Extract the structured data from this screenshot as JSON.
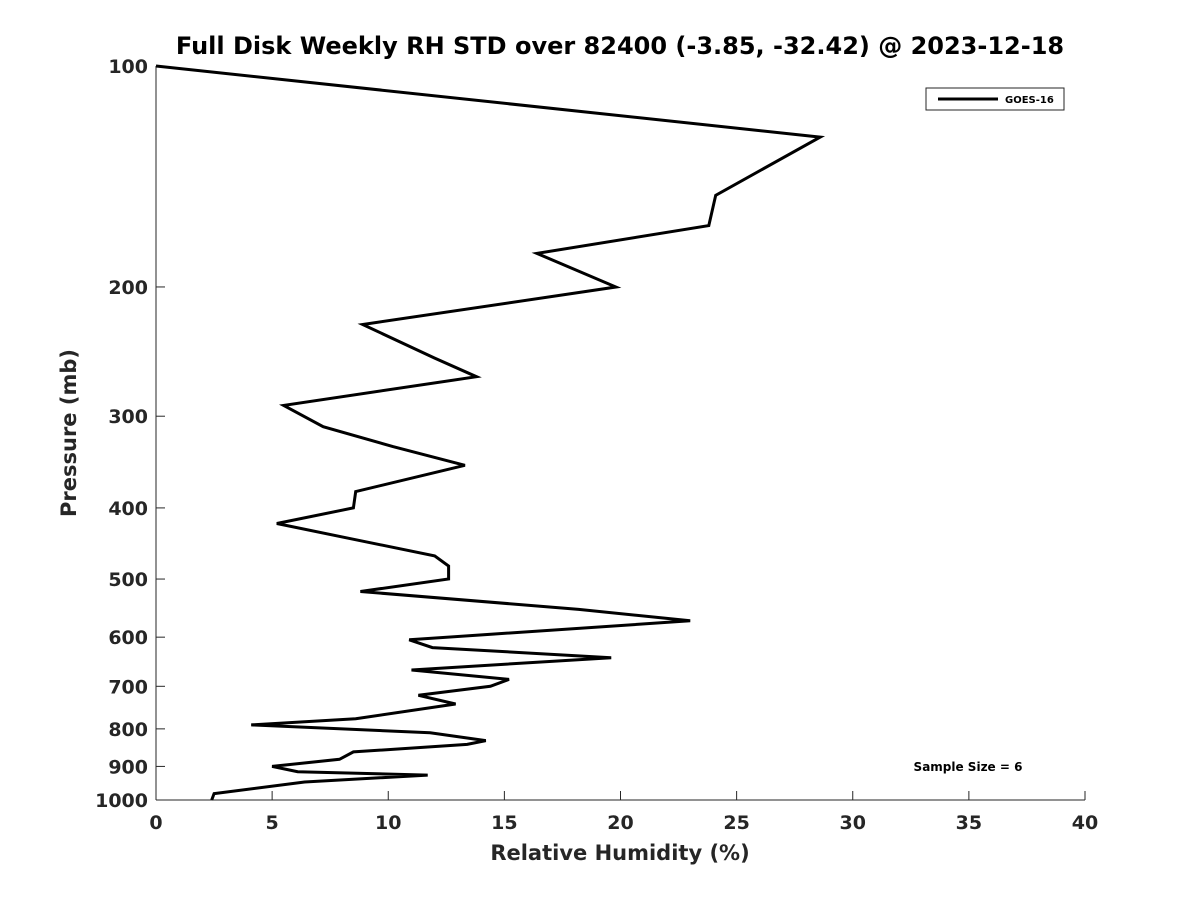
{
  "chart_data": {
    "type": "line",
    "title": "Full Disk Weekly RH STD over 82400 (-3.85, -32.42) @ 2023-12-18",
    "xlabel": "Relative Humidity (%)",
    "ylabel": "Pressure (mb)",
    "xlim": [
      0,
      40
    ],
    "ylim": [
      100,
      1000
    ],
    "y_scale": "log",
    "y_reversed": true,
    "x_ticks": [
      0,
      5,
      10,
      15,
      20,
      25,
      30,
      35,
      40
    ],
    "y_ticks": [
      100,
      200,
      300,
      400,
      500,
      600,
      700,
      800,
      900,
      1000
    ],
    "grid": false,
    "legend_position": "top-right",
    "series": [
      {
        "name": "GOES-16",
        "color": "#000000",
        "points": [
          [
            0.0,
            100
          ],
          [
            28.6,
            125
          ],
          [
            24.1,
            150
          ],
          [
            23.8,
            165
          ],
          [
            16.4,
            180
          ],
          [
            19.8,
            200
          ],
          [
            8.9,
            225
          ],
          [
            12.0,
            250
          ],
          [
            13.8,
            265
          ],
          [
            5.5,
            290
          ],
          [
            7.2,
            310
          ],
          [
            10.2,
            330
          ],
          [
            13.3,
            350
          ],
          [
            8.6,
            380
          ],
          [
            8.5,
            400
          ],
          [
            5.2,
            420
          ],
          [
            8.3,
            440
          ],
          [
            12.0,
            465
          ],
          [
            12.6,
            480
          ],
          [
            12.6,
            500
          ],
          [
            8.8,
            520
          ],
          [
            18.2,
            550
          ],
          [
            23.0,
            570
          ],
          [
            10.9,
            605
          ],
          [
            11.9,
            620
          ],
          [
            19.6,
            640
          ],
          [
            11.0,
            665
          ],
          [
            15.2,
            685
          ],
          [
            14.4,
            700
          ],
          [
            11.3,
            720
          ],
          [
            12.9,
            740
          ],
          [
            8.6,
            775
          ],
          [
            4.1,
            790
          ],
          [
            11.8,
            810
          ],
          [
            14.2,
            830
          ],
          [
            13.4,
            840
          ],
          [
            8.5,
            860
          ],
          [
            7.9,
            880
          ],
          [
            5.0,
            900
          ],
          [
            6.1,
            915
          ],
          [
            11.7,
            925
          ],
          [
            6.4,
            945
          ],
          [
            2.5,
            980
          ],
          [
            2.4,
            1000
          ]
        ]
      }
    ],
    "annotations": [
      {
        "text": "Sample Size = 6",
        "position": "bottom-right"
      }
    ]
  }
}
